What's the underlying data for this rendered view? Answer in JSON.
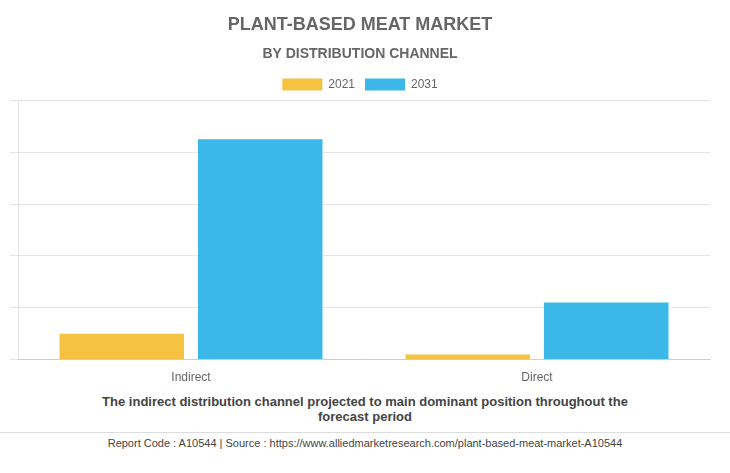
{
  "chart_data": {
    "type": "bar",
    "title": "PLANT-BASED MEAT MARKET",
    "subtitle": "BY DISTRIBUTION CHANNEL",
    "categories": [
      "Indirect",
      "Direct"
    ],
    "series": [
      {
        "name": "2021",
        "color": "#F5C242",
        "values": [
          10,
          2
        ]
      },
      {
        "name": "2031",
        "color": "#3BB8E8",
        "values": [
          85,
          22
        ]
      }
    ],
    "ylim": [
      0,
      100
    ],
    "yticks": [
      0,
      20,
      40,
      60,
      80,
      100
    ],
    "grid": true,
    "legend": "top",
    "tick_labels": "x",
    "annotations": [
      "The indirect distribution channel projected to main dominant position throughout the\nforecast period",
      "Report Code : A10544  |  Source : https://www.alliedmarketresearch.com/plant-based-meat-market-A10544"
    ]
  }
}
